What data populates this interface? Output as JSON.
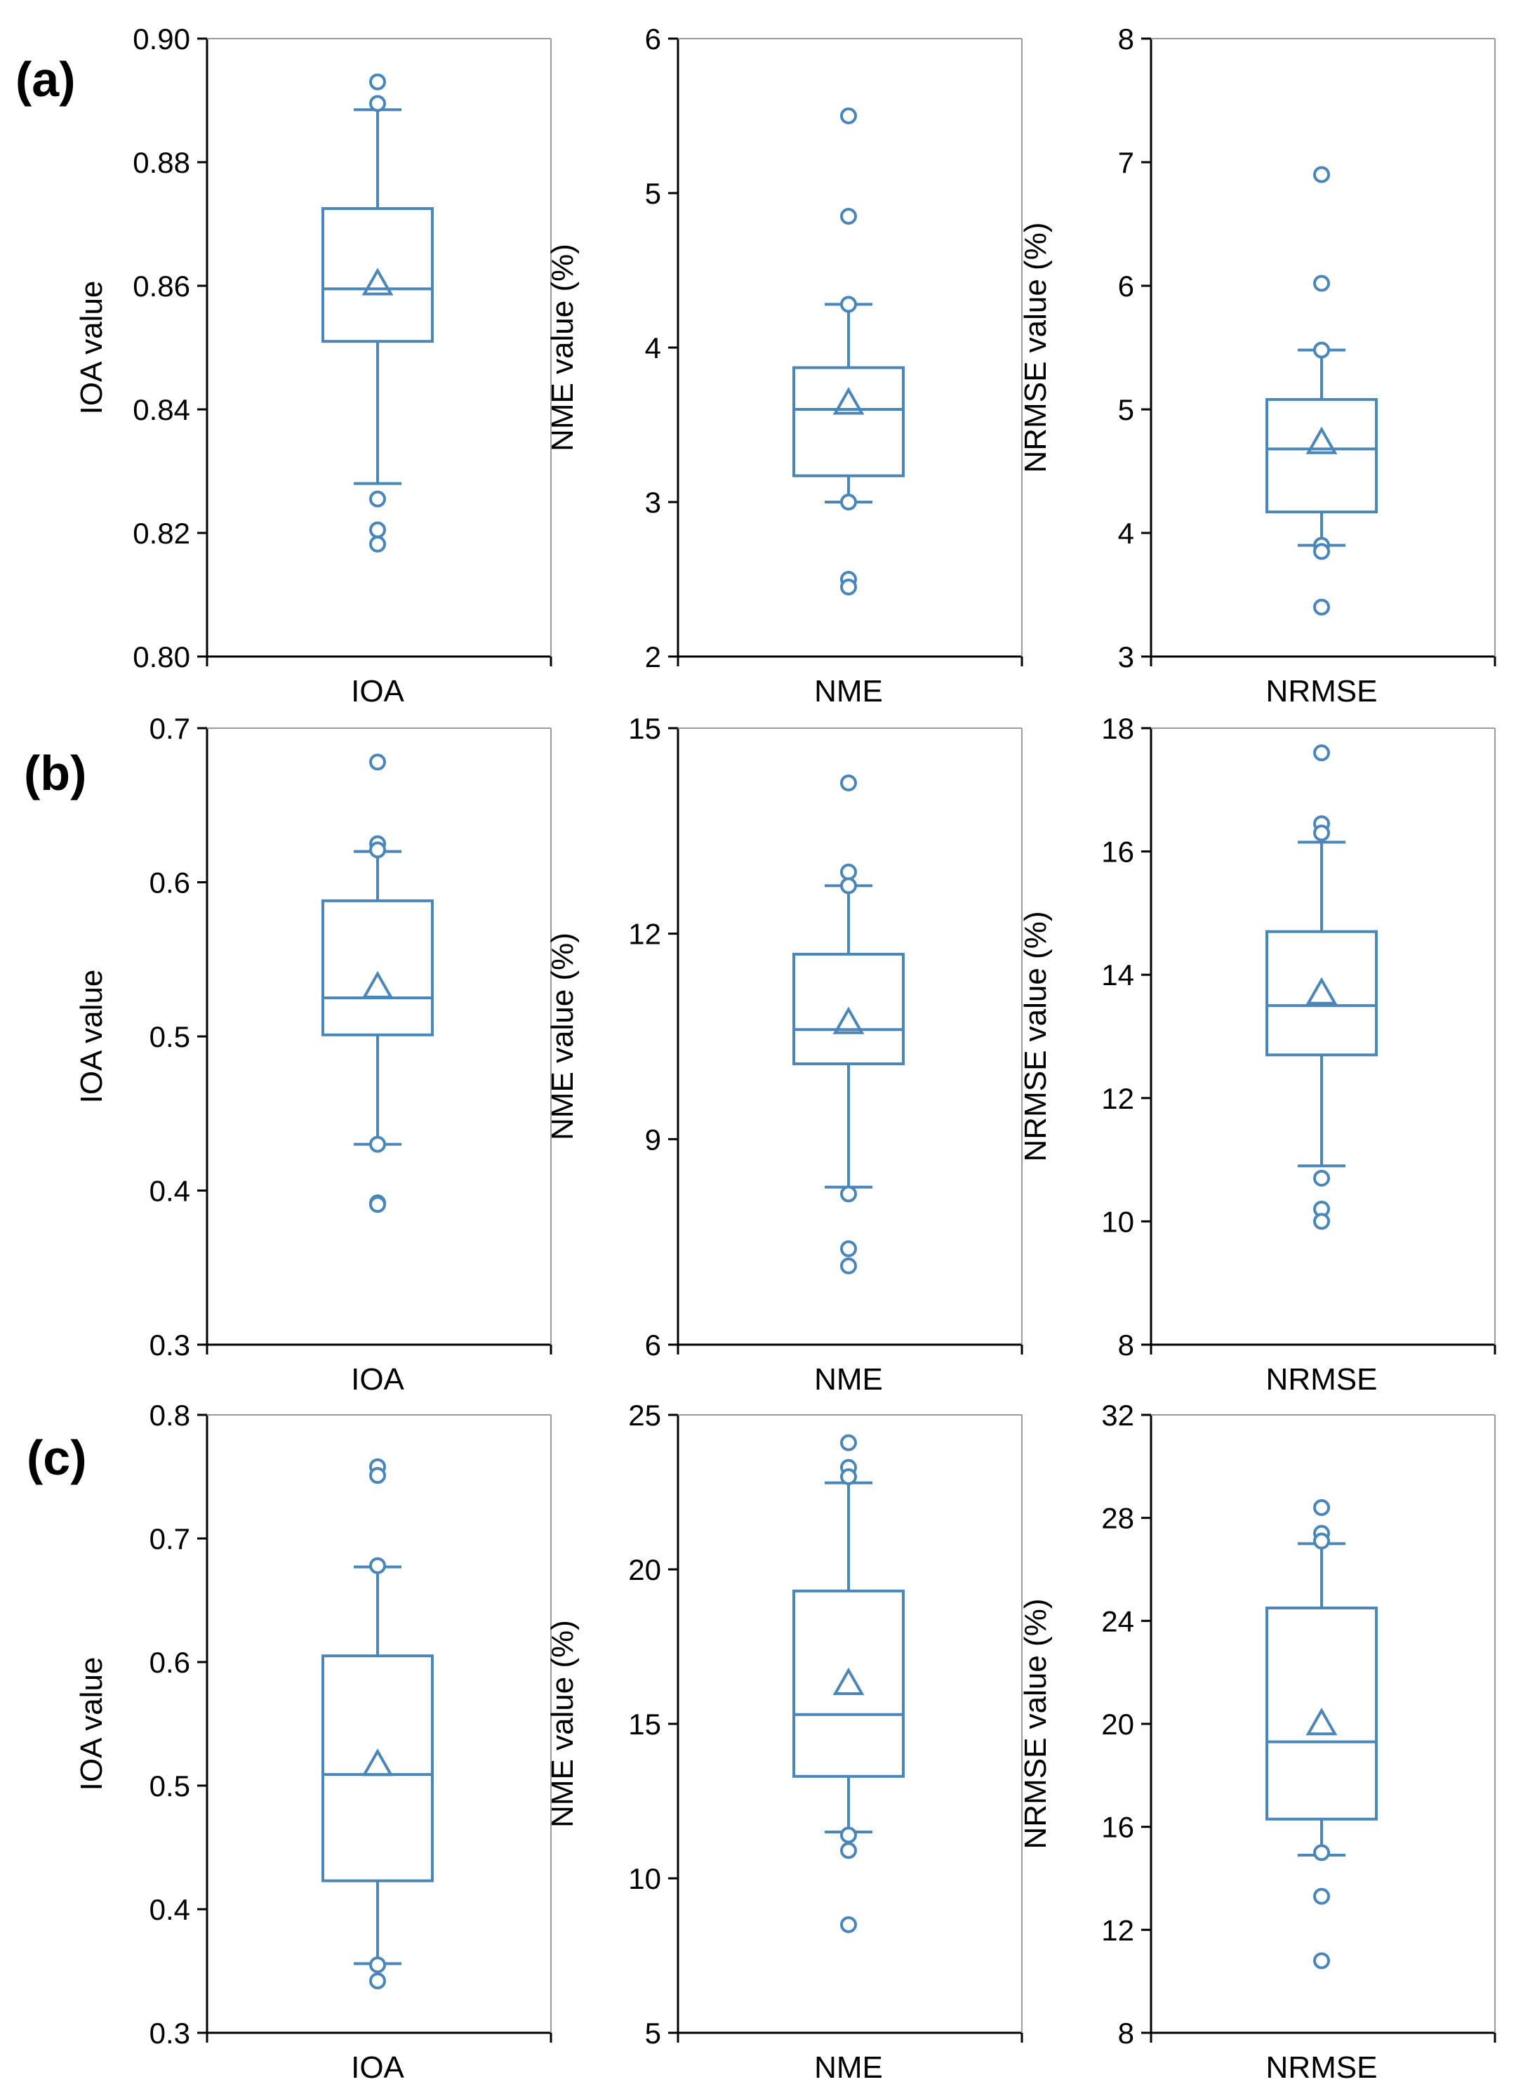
{
  "panel_labels": [
    "(a)",
    "(b)",
    "(c)"
  ],
  "style": {
    "box_color": "#4a86b8",
    "axis_color": "#000000",
    "text_color": "#000000"
  },
  "chart_data": [
    {
      "type": "box",
      "panel": "(a)",
      "category": "IOA",
      "ylabel": "IOA value",
      "ylim": [
        0.8,
        0.9
      ],
      "ticks": [
        "0.80",
        "0.82",
        "0.84",
        "0.86",
        "0.88",
        "0.90"
      ],
      "whisker_low": 0.828,
      "q1": 0.851,
      "median": 0.8595,
      "q3": 0.8725,
      "whisker_high": 0.8885,
      "mean": 0.8603,
      "outliers": [
        0.893,
        0.8895,
        0.8255,
        0.8205,
        0.8182
      ]
    },
    {
      "type": "box",
      "panel": "(a)",
      "category": "NME",
      "ylabel": "NME value (%)",
      "ylim": [
        2,
        6
      ],
      "ticks": [
        "2",
        "3",
        "4",
        "5",
        "6"
      ],
      "whisker_low": 3.0,
      "q1": 3.17,
      "median": 3.6,
      "q3": 3.87,
      "whisker_high": 4.28,
      "mean": 3.64,
      "outliers": [
        5.5,
        4.85,
        4.28,
        3.0,
        2.5,
        2.45
      ]
    },
    {
      "type": "box",
      "panel": "(a)",
      "category": "NRMSE",
      "ylabel": "NRMSE value (%)",
      "ylim": [
        3,
        8
      ],
      "ticks": [
        "3",
        "4",
        "5",
        "6",
        "7",
        "8"
      ],
      "whisker_low": 3.9,
      "q1": 4.17,
      "median": 4.68,
      "q3": 5.08,
      "whisker_high": 5.48,
      "mean": 4.73,
      "outliers": [
        6.9,
        6.02,
        5.48,
        3.9,
        3.85,
        3.4
      ]
    },
    {
      "type": "box",
      "panel": "(b)",
      "category": "IOA",
      "ylabel": "IOA value",
      "ylim": [
        0.3,
        0.7
      ],
      "ticks": [
        "0.3",
        "0.4",
        "0.5",
        "0.6",
        "0.7"
      ],
      "whisker_low": 0.43,
      "q1": 0.501,
      "median": 0.525,
      "q3": 0.588,
      "whisker_high": 0.62,
      "mean": 0.532,
      "outliers": [
        0.678,
        0.625,
        0.621,
        0.43,
        0.392,
        0.391
      ]
    },
    {
      "type": "box",
      "panel": "(b)",
      "category": "NME",
      "ylabel": "NME value (%)",
      "ylim": [
        6,
        15
      ],
      "ticks": [
        "6",
        "9",
        "12",
        "15"
      ],
      "whisker_low": 8.3,
      "q1": 10.1,
      "median": 10.6,
      "q3": 11.7,
      "whisker_high": 12.7,
      "mean": 10.7,
      "outliers": [
        14.2,
        12.9,
        12.7,
        8.2,
        7.4,
        7.15
      ]
    },
    {
      "type": "box",
      "panel": "(b)",
      "category": "NRMSE",
      "ylabel": "NRMSE value (%)",
      "ylim": [
        8,
        18
      ],
      "ticks": [
        "8",
        "10",
        "12",
        "14",
        "16",
        "18"
      ],
      "whisker_low": 10.9,
      "q1": 12.7,
      "median": 13.5,
      "q3": 14.7,
      "whisker_high": 16.15,
      "mean": 13.7,
      "outliers": [
        17.6,
        16.45,
        16.3,
        10.7,
        10.2,
        10.0
      ]
    },
    {
      "type": "box",
      "panel": "(c)",
      "category": "IOA",
      "ylabel": "IOA value",
      "ylim": [
        0.3,
        0.8
      ],
      "ticks": [
        "0.3",
        "0.4",
        "0.5",
        "0.6",
        "0.7",
        "0.8"
      ],
      "whisker_low": 0.356,
      "q1": 0.423,
      "median": 0.509,
      "q3": 0.605,
      "whisker_high": 0.677,
      "mean": 0.517,
      "outliers": [
        0.758,
        0.751,
        0.678,
        0.355,
        0.342
      ]
    },
    {
      "type": "box",
      "panel": "(c)",
      "category": "NME",
      "ylabel": "NME value (%)",
      "ylim": [
        5,
        25
      ],
      "ticks": [
        "5",
        "10",
        "15",
        "20",
        "25"
      ],
      "whisker_low": 11.5,
      "q1": 13.3,
      "median": 15.3,
      "q3": 19.3,
      "whisker_high": 22.8,
      "mean": 16.3,
      "outliers": [
        24.1,
        23.3,
        23.0,
        11.4,
        10.9,
        8.5
      ]
    },
    {
      "type": "box",
      "panel": "(c)",
      "category": "NRMSE",
      "ylabel": "NRMSE value (%)",
      "ylim": [
        8,
        32
      ],
      "ticks": [
        "8",
        "12",
        "16",
        "20",
        "24",
        "28",
        "32"
      ],
      "whisker_low": 14.9,
      "q1": 16.3,
      "median": 19.3,
      "q3": 24.5,
      "whisker_high": 27.0,
      "mean": 20.0,
      "outliers": [
        28.4,
        27.4,
        27.1,
        15.0,
        13.3,
        10.8
      ]
    }
  ]
}
